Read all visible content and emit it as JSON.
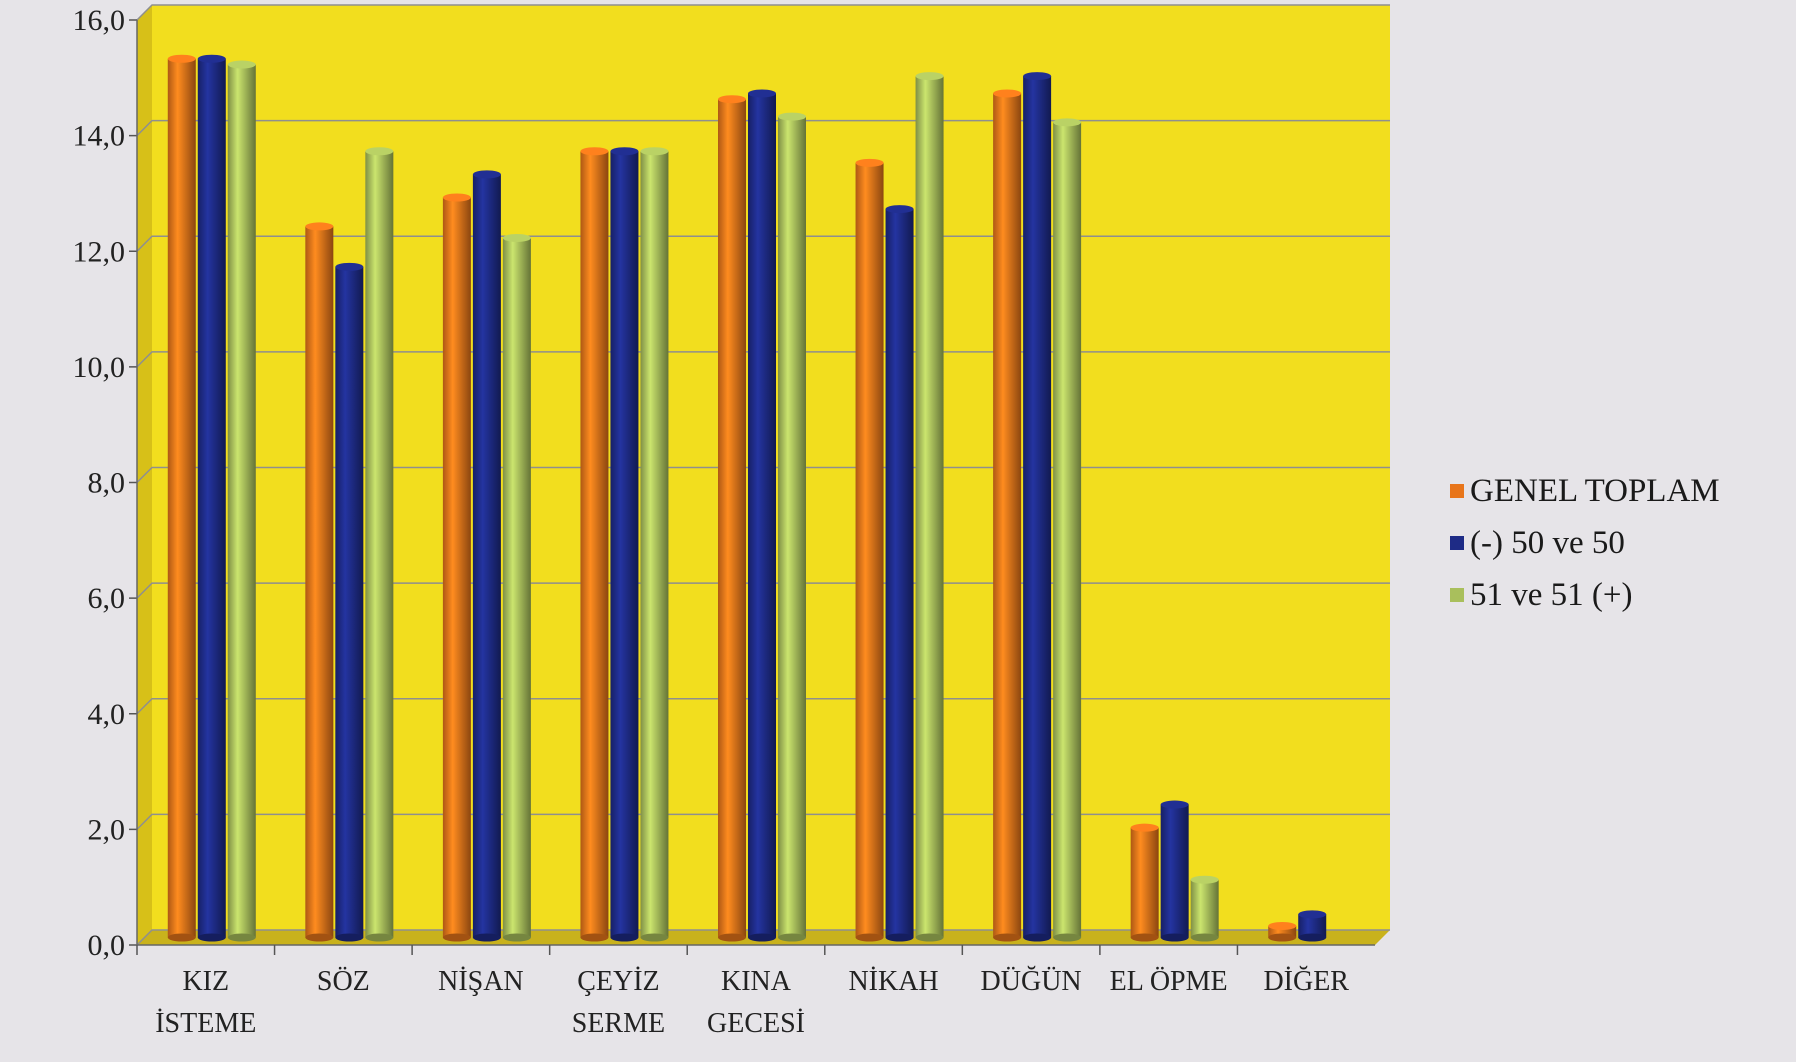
{
  "chart_data": {
    "type": "bar",
    "categories": [
      "KIZ İSTEME",
      "SÖZ",
      "NİŞAN",
      "ÇEYİZ SERME",
      "KINA GECESİ",
      "NİKAH",
      "DÜĞÜN",
      "EL ÖPME",
      "DİĞER"
    ],
    "category_lines": [
      [
        "KIZ",
        "İSTEME"
      ],
      [
        "SÖZ"
      ],
      [
        "NİŞAN"
      ],
      [
        "ÇEYİZ",
        "SERME"
      ],
      [
        "KINA",
        "GECESİ"
      ],
      [
        "NİKAH"
      ],
      [
        "DÜĞÜN"
      ],
      [
        "EL ÖPME"
      ],
      [
        "DİĞER"
      ]
    ],
    "series": [
      {
        "name": "GENEL TOPLAM",
        "color": "#e8751a",
        "values": [
          15.2,
          12.3,
          12.8,
          13.6,
          14.5,
          13.4,
          14.6,
          1.9,
          0.2
        ]
      },
      {
        "name": "(-) 50 ve 50",
        "color": "#1e2b86",
        "values": [
          15.2,
          11.6,
          13.2,
          13.6,
          14.6,
          12.6,
          14.9,
          2.3,
          0.4
        ]
      },
      {
        "name": "51 ve 51 (+)",
        "color": "#a9bf5c",
        "values": [
          15.1,
          13.6,
          12.1,
          13.6,
          14.2,
          14.9,
          14.1,
          1.0,
          0.0
        ]
      }
    ],
    "yticks": [
      "0,0",
      "2,0",
      "4,0",
      "6,0",
      "8,0",
      "10,0",
      "12,0",
      "14,0",
      "16,0"
    ],
    "ylim": [
      0,
      16
    ],
    "grid": true,
    "legend": "right",
    "plot_background": "#f2de1e"
  }
}
